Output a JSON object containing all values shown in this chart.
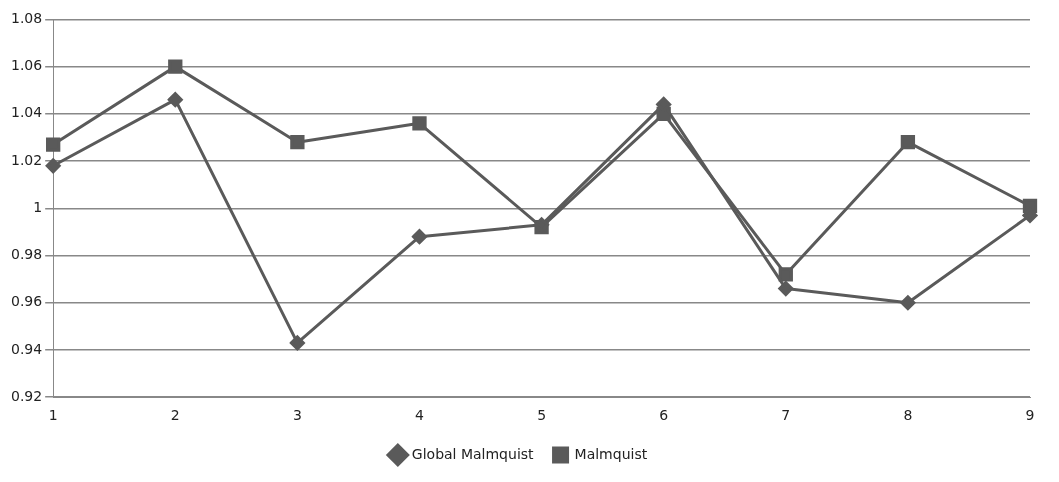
{
  "chart_data": {
    "type": "line",
    "categories": [
      "1",
      "2",
      "3",
      "4",
      "5",
      "6",
      "7",
      "8",
      "9"
    ],
    "series": [
      {
        "name": "Global Malmquist",
        "color": "#5a5a5a",
        "marker": "diamond",
        "values": [
          1.018,
          1.046,
          0.943,
          0.988,
          0.993,
          1.044,
          0.966,
          0.96,
          0.997
        ]
      },
      {
        "name": "Malmquist",
        "color": "#5a5a5a",
        "marker": "square",
        "values": [
          1.027,
          1.06,
          1.028,
          1.036,
          0.992,
          1.04,
          0.972,
          1.028,
          1.001
        ]
      }
    ],
    "ylim": [
      0.92,
      1.08
    ],
    "yticks": [
      0.92,
      0.94,
      0.96,
      0.98,
      1,
      1.02,
      1.04,
      1.06,
      1.08
    ],
    "grid": "y",
    "legend": "bottom"
  }
}
